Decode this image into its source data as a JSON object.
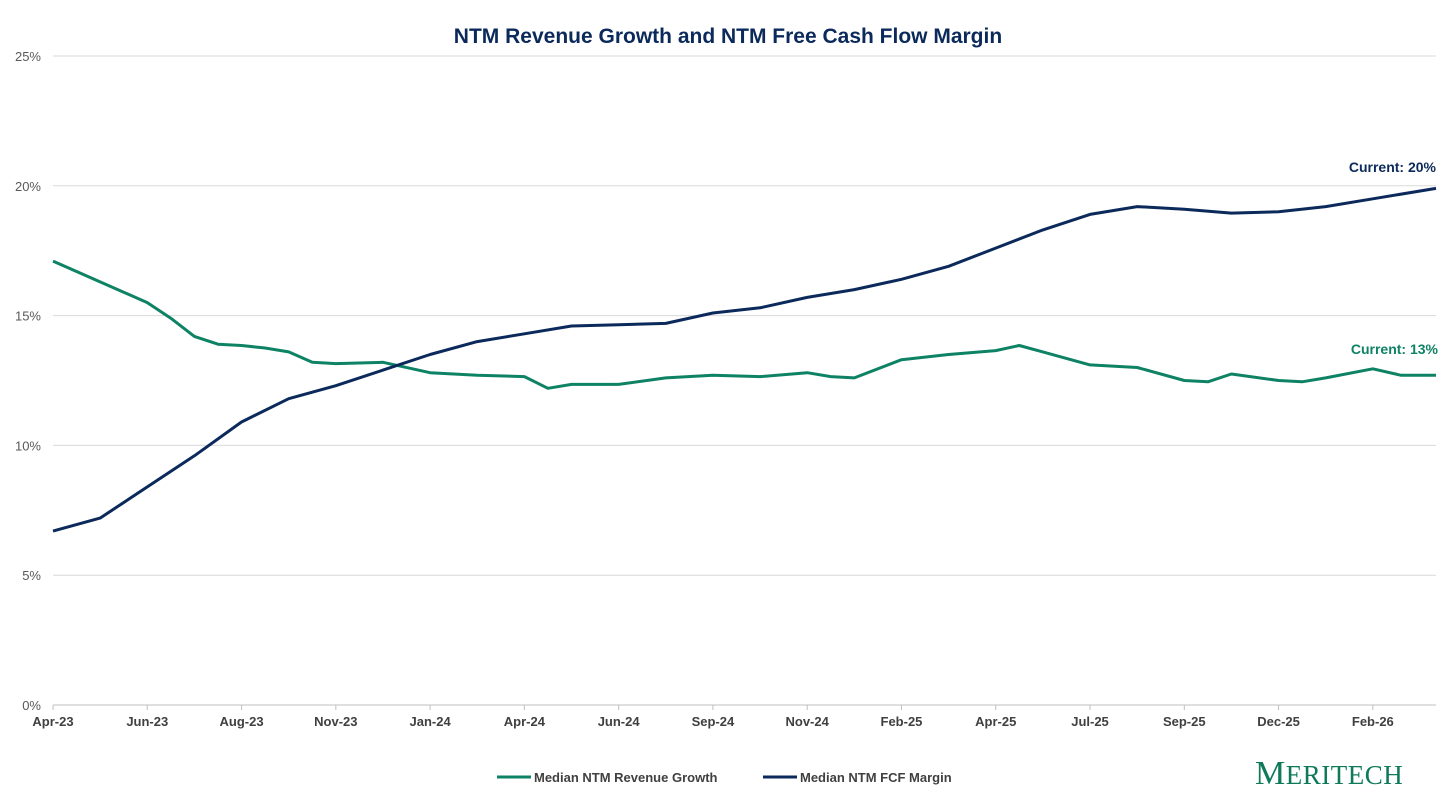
{
  "logo": {
    "first": "M",
    "rest": "ERITECH"
  },
  "chart_data": {
    "type": "line",
    "title": "NTM Revenue Growth and NTM Free Cash Flow Margin",
    "xlabel": "",
    "ylabel": "",
    "ylim": [
      0,
      25
    ],
    "yticks": [
      0,
      5,
      10,
      15,
      20,
      25
    ],
    "ytick_labels": [
      "0%",
      "5%",
      "10%",
      "15%",
      "20%",
      "25%"
    ],
    "categories": [
      "Apr-23",
      "Jun-23",
      "Aug-23",
      "Nov-23",
      "Jan-24",
      "Apr-24",
      "Jun-24",
      "Sep-24",
      "Nov-24",
      "Feb-25",
      "Apr-25",
      "Jul-25",
      "Sep-25",
      "Dec-25",
      "Feb-26"
    ],
    "xlim": [
      0,
      14.67
    ],
    "grid": true,
    "legend": "bottom-center",
    "colors": {
      "revenue": "#0e8264",
      "fcf": "#0b2a5b"
    },
    "series": [
      {
        "name": "Median NTM Revenue Growth",
        "key": "revenue",
        "annotation": "Current: 13%",
        "x": [
          0,
          0.25,
          0.5,
          0.75,
          1,
          1.25,
          1.5,
          1.75,
          2,
          2.25,
          2.5,
          2.75,
          3,
          3.5,
          4,
          4.5,
          5,
          5.25,
          5.5,
          6,
          6.5,
          7,
          7.5,
          8,
          8.25,
          8.5,
          9,
          9.5,
          10,
          10.25,
          10.5,
          11,
          11.5,
          12,
          12.25,
          12.5,
          13,
          13.25,
          13.5,
          14,
          14.3,
          14.67
        ],
        "values": [
          17.1,
          16.7,
          16.3,
          15.9,
          15.5,
          14.9,
          14.2,
          13.9,
          13.85,
          13.75,
          13.6,
          13.2,
          13.15,
          13.2,
          12.8,
          12.7,
          12.65,
          12.2,
          12.35,
          12.35,
          12.6,
          12.7,
          12.65,
          12.8,
          12.65,
          12.6,
          13.3,
          13.5,
          13.65,
          13.85,
          13.6,
          13.1,
          13.0,
          12.5,
          12.45,
          12.75,
          12.5,
          12.45,
          12.6,
          12.95,
          12.7,
          12.7
        ]
      },
      {
        "name": "Median NTM FCF Margin",
        "key": "fcf",
        "annotation": "Current: 20%",
        "x": [
          0,
          0.5,
          1,
          1.5,
          2,
          2.5,
          3,
          3.5,
          4,
          4.5,
          5,
          5.5,
          6,
          6.5,
          7,
          7.5,
          8,
          8.5,
          9,
          9.5,
          10,
          10.5,
          11,
          11.5,
          12,
          12.5,
          13,
          13.5,
          14,
          14.67
        ],
        "values": [
          6.7,
          7.2,
          8.4,
          9.6,
          10.9,
          11.8,
          12.3,
          12.9,
          13.5,
          14.0,
          14.3,
          14.6,
          14.65,
          14.7,
          15.1,
          15.3,
          15.7,
          16.0,
          16.4,
          16.9,
          17.6,
          18.3,
          18.9,
          19.2,
          19.1,
          18.95,
          19.0,
          19.2,
          19.5,
          19.9
        ]
      }
    ]
  }
}
